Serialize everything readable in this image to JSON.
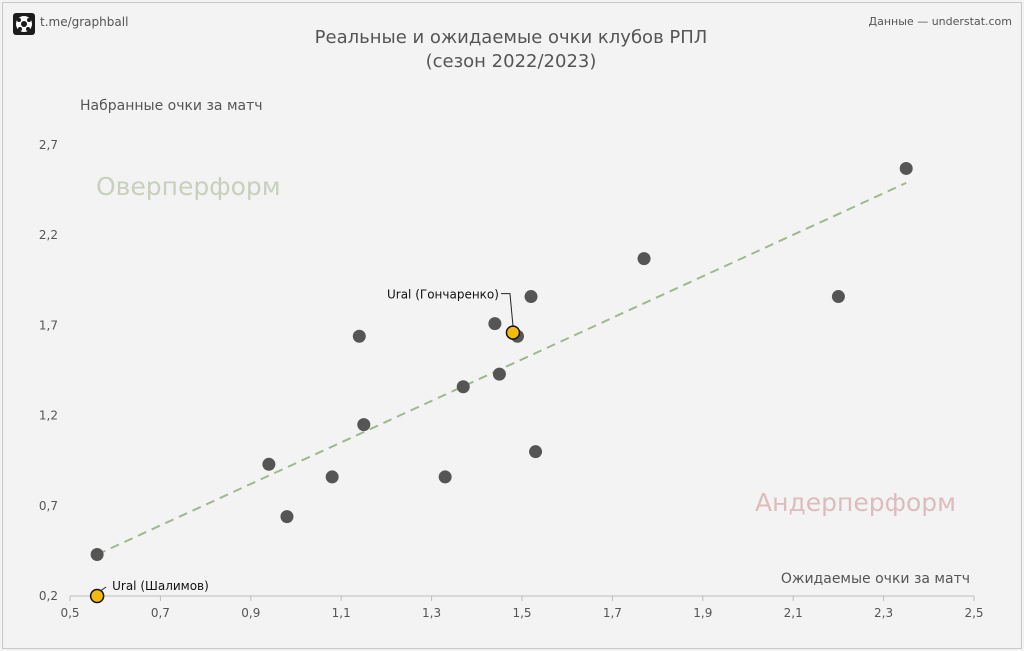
{
  "header": {
    "logo_text": "t.me/graphball",
    "source": "Данные — understat.com"
  },
  "chart_data": {
    "type": "scatter",
    "title": "Реальные и ожидаемые очки клубов РПЛ",
    "subtitle": "(сезон 2022/2023)",
    "xlabel": "Ожидаемые очки за матч",
    "ylabel": "Набранные очки за матч",
    "xlim": [
      0.5,
      2.5
    ],
    "ylim": [
      0.2,
      2.7
    ],
    "xticks": [
      "0,5",
      "0,7",
      "0,9",
      "1,1",
      "1,3",
      "1,5",
      "1,7",
      "1,9",
      "2,1",
      "2,3",
      "2,5"
    ],
    "yticks": [
      "0,2",
      "0,7",
      "1,2",
      "1,7",
      "2,2",
      "2,7"
    ],
    "grid": false,
    "region_labels": {
      "over": "Оверперформ",
      "under": "Андерперформ"
    },
    "colors": {
      "point": "#555555",
      "highlight": "#f2b90f",
      "trend": "#9fb88e",
      "over_label": "#c8d0bd",
      "under_label": "#dcbcbc",
      "axis_text": "#555555"
    },
    "points": [
      {
        "x": 0.56,
        "y": 0.43
      },
      {
        "x": 0.94,
        "y": 0.93
      },
      {
        "x": 0.98,
        "y": 0.64
      },
      {
        "x": 1.08,
        "y": 0.86
      },
      {
        "x": 1.14,
        "y": 1.64
      },
      {
        "x": 1.15,
        "y": 1.15
      },
      {
        "x": 1.33,
        "y": 0.86
      },
      {
        "x": 1.37,
        "y": 1.36
      },
      {
        "x": 1.44,
        "y": 1.71
      },
      {
        "x": 1.45,
        "y": 1.43
      },
      {
        "x": 1.49,
        "y": 1.64
      },
      {
        "x": 1.52,
        "y": 1.86
      },
      {
        "x": 1.53,
        "y": 1.0
      },
      {
        "x": 1.77,
        "y": 2.07
      },
      {
        "x": 2.2,
        "y": 1.86
      },
      {
        "x": 2.35,
        "y": 2.57
      }
    ],
    "highlighted": [
      {
        "label": "Ural (Гончаренко)",
        "x": 1.48,
        "y": 1.66
      },
      {
        "label": "Ural (Шалимов)",
        "x": 0.56,
        "y": 0.2
      }
    ],
    "trendline": {
      "x": [
        0.56,
        2.35
      ],
      "y": [
        0.43,
        2.49
      ]
    }
  }
}
